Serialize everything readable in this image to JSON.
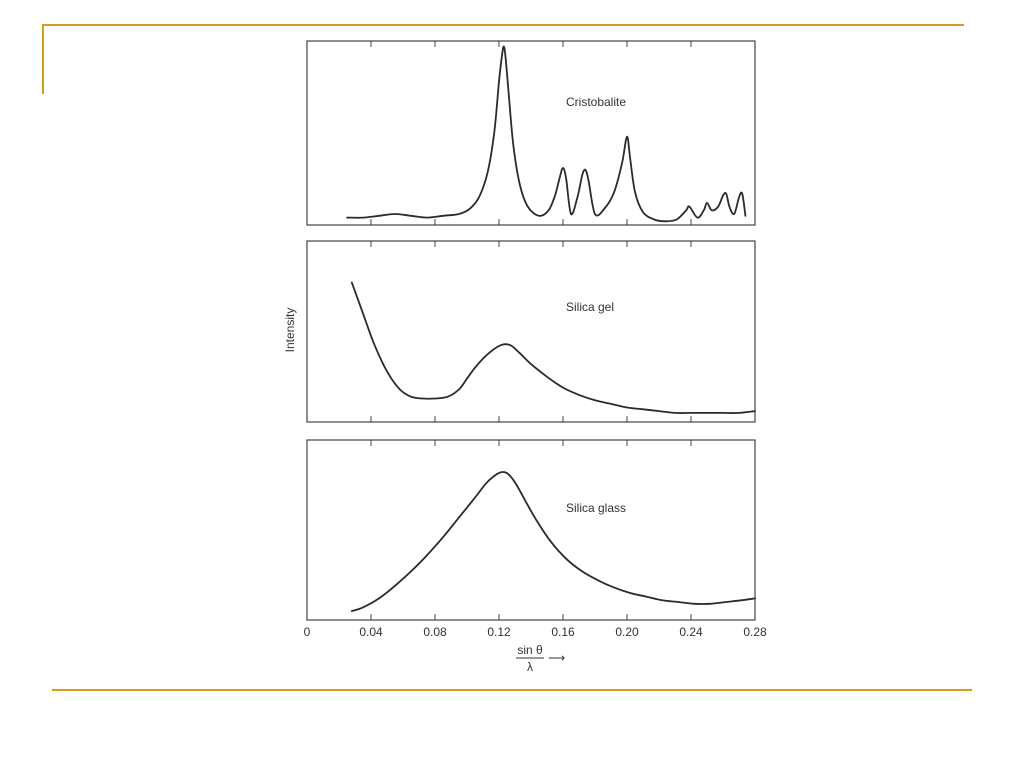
{
  "slide": {
    "accent_color": "#D4A017"
  },
  "chart_data": {
    "type": "line",
    "xlabel_numerator": "sin θ",
    "xlabel_denominator": "λ",
    "xlabel_arrow": "⟶",
    "ylabel": "Intensity",
    "xlim": [
      0,
      0.28
    ],
    "x_ticks": [
      "0",
      "0.04",
      "0.08",
      "0.12",
      "0.16",
      "0.20",
      "0.24",
      "0.28"
    ],
    "x_tick_values": [
      0,
      0.04,
      0.08,
      0.12,
      0.16,
      0.2,
      0.24,
      0.28
    ],
    "ylim": [
      0,
      1
    ],
    "line_color": "#2b2b2b",
    "series": [
      {
        "name": "Cristobalite",
        "x": [
          0.025,
          0.035,
          0.045,
          0.055,
          0.065,
          0.075,
          0.085,
          0.095,
          0.102,
          0.108,
          0.113,
          0.117,
          0.12,
          0.122,
          0.123,
          0.124,
          0.126,
          0.129,
          0.133,
          0.138,
          0.145,
          0.151,
          0.155,
          0.158,
          0.16,
          0.162,
          0.165,
          0.169,
          0.172,
          0.174,
          0.176,
          0.18,
          0.186,
          0.192,
          0.197,
          0.2,
          0.202,
          0.205,
          0.21,
          0.217,
          0.224,
          0.231,
          0.237,
          0.239,
          0.244,
          0.248,
          0.25,
          0.253,
          0.257,
          0.26,
          0.262,
          0.264,
          0.267,
          0.27,
          0.272,
          0.274
        ],
        "y": [
          0.04,
          0.04,
          0.05,
          0.06,
          0.05,
          0.04,
          0.05,
          0.06,
          0.09,
          0.16,
          0.29,
          0.5,
          0.78,
          0.93,
          0.97,
          0.92,
          0.72,
          0.43,
          0.22,
          0.1,
          0.05,
          0.08,
          0.16,
          0.26,
          0.31,
          0.25,
          0.06,
          0.15,
          0.27,
          0.3,
          0.24,
          0.06,
          0.09,
          0.18,
          0.34,
          0.48,
          0.36,
          0.18,
          0.07,
          0.03,
          0.02,
          0.03,
          0.08,
          0.1,
          0.04,
          0.08,
          0.12,
          0.08,
          0.1,
          0.16,
          0.17,
          0.1,
          0.06,
          0.15,
          0.17,
          0.05
        ]
      },
      {
        "name": "Silica gel",
        "x": [
          0.028,
          0.035,
          0.042,
          0.05,
          0.058,
          0.065,
          0.072,
          0.08,
          0.088,
          0.095,
          0.1,
          0.105,
          0.11,
          0.115,
          0.12,
          0.124,
          0.128,
          0.133,
          0.14,
          0.15,
          0.16,
          0.17,
          0.18,
          0.19,
          0.2,
          0.21,
          0.22,
          0.23,
          0.24,
          0.25,
          0.26,
          0.27,
          0.28
        ],
        "y": [
          0.77,
          0.6,
          0.43,
          0.28,
          0.18,
          0.14,
          0.13,
          0.13,
          0.14,
          0.18,
          0.24,
          0.3,
          0.35,
          0.39,
          0.42,
          0.43,
          0.42,
          0.38,
          0.32,
          0.25,
          0.19,
          0.15,
          0.12,
          0.1,
          0.08,
          0.07,
          0.06,
          0.05,
          0.05,
          0.05,
          0.05,
          0.05,
          0.06
        ]
      },
      {
        "name": "Silica glass",
        "x": [
          0.028,
          0.035,
          0.045,
          0.055,
          0.065,
          0.075,
          0.085,
          0.095,
          0.105,
          0.112,
          0.117,
          0.121,
          0.124,
          0.127,
          0.131,
          0.136,
          0.143,
          0.152,
          0.162,
          0.172,
          0.182,
          0.192,
          0.202,
          0.212,
          0.222,
          0.232,
          0.242,
          0.252,
          0.262,
          0.272,
          0.28
        ],
        "y": [
          0.05,
          0.07,
          0.12,
          0.19,
          0.27,
          0.36,
          0.46,
          0.57,
          0.68,
          0.76,
          0.8,
          0.82,
          0.82,
          0.8,
          0.75,
          0.67,
          0.56,
          0.44,
          0.34,
          0.27,
          0.22,
          0.18,
          0.15,
          0.13,
          0.11,
          0.1,
          0.09,
          0.09,
          0.1,
          0.11,
          0.12
        ]
      }
    ]
  }
}
